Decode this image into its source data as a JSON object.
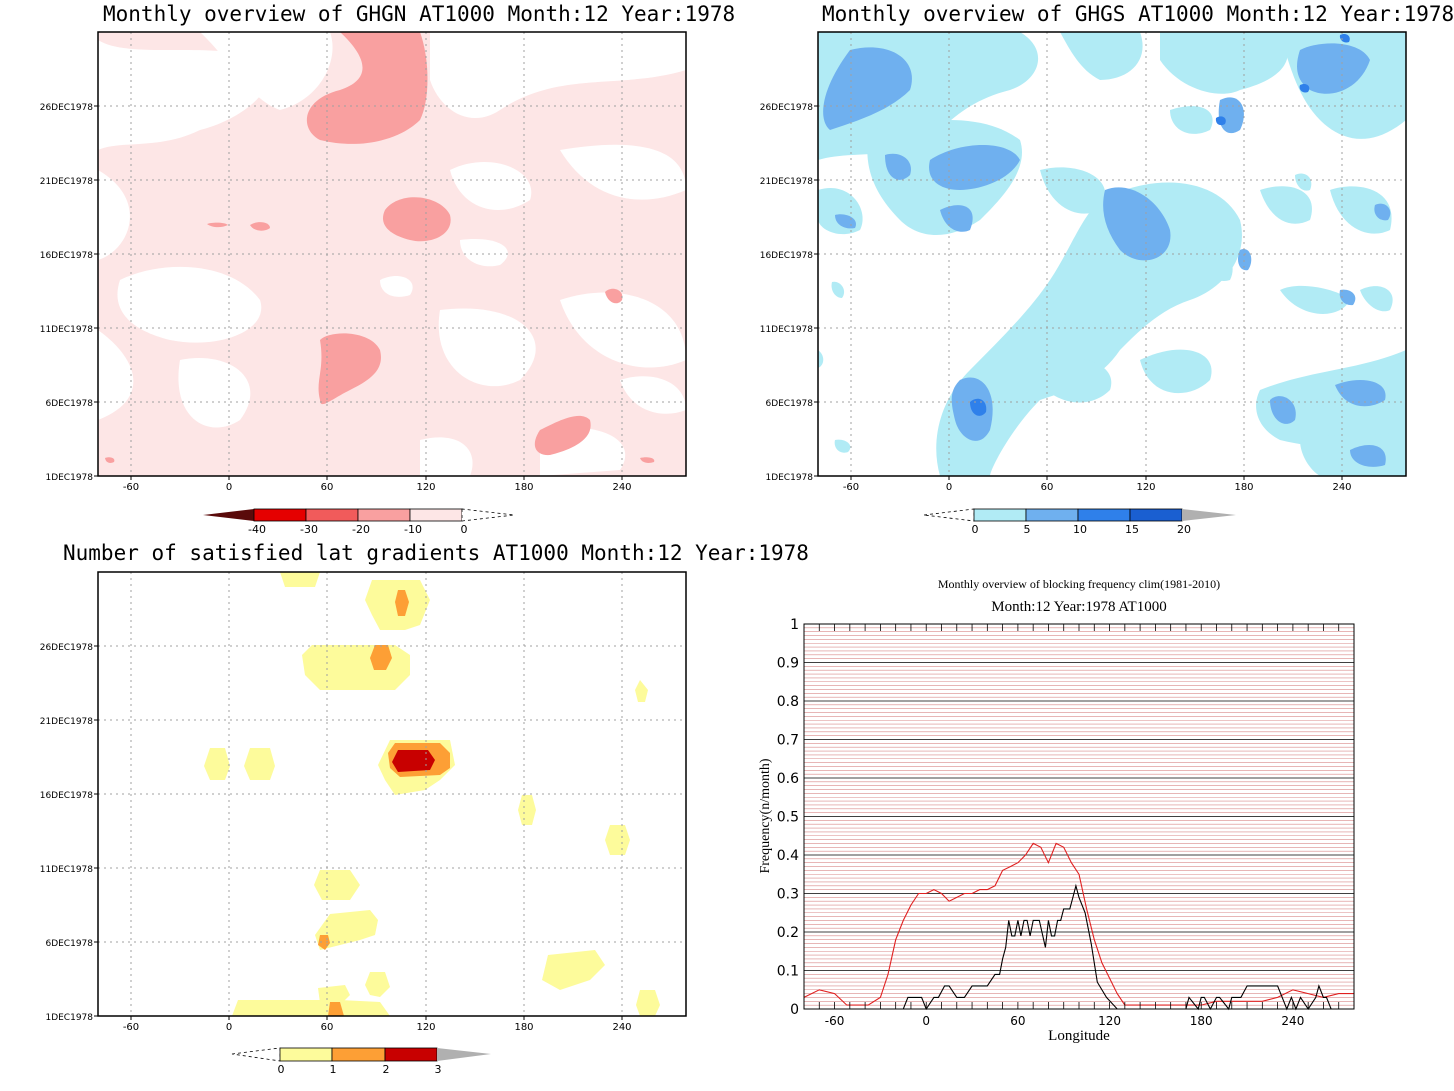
{
  "colors": {
    "red_scale": [
      "#5a0a0a",
      "#e50000",
      "#f15b5b",
      "#f9a0a0",
      "#fde6e6"
    ],
    "blue_scale": [
      "#b1ebf5",
      "#6fb0ef",
      "#2f80ea",
      "#1a5fd1"
    ],
    "yellow_scale": [
      "#fdfb9b",
      "#fd9f35",
      "#c80000"
    ],
    "gray": "#b0b0b0",
    "grid": "#a0a0a0",
    "clim_line": "#e02020",
    "year_line": "#000000"
  },
  "panels": [
    {
      "title": "Monthly overview of GHGN AT1000 Month:12 Year:1978",
      "y_ticks": [
        "1DEC1978",
        "6DEC1978",
        "11DEC1978",
        "16DEC1978",
        "21DEC1978",
        "26DEC1978"
      ],
      "x_ticks": [
        "-60",
        "0",
        "60",
        "120",
        "180",
        "240"
      ],
      "colorbar_labels": [
        "-40",
        "-30",
        "-20",
        "-10",
        "0"
      ]
    },
    {
      "title": "Monthly overview of GHGS AT1000 Month:12 Year:1978",
      "y_ticks": [
        "1DEC1978",
        "6DEC1978",
        "11DEC1978",
        "16DEC1978",
        "21DEC1978",
        "26DEC1978"
      ],
      "x_ticks": [
        "-60",
        "0",
        "60",
        "120",
        "180",
        "240"
      ],
      "colorbar_labels": [
        "0",
        "5",
        "10",
        "15",
        "20"
      ]
    },
    {
      "title": "Number of satisfied lat gradients AT1000 Month:12 Year:1978",
      "y_ticks": [
        "1DEC1978",
        "6DEC1978",
        "11DEC1978",
        "16DEC1978",
        "21DEC1978",
        "26DEC1978"
      ],
      "x_ticks": [
        "-60",
        "0",
        "60",
        "120",
        "180",
        "240"
      ],
      "colorbar_labels": [
        "0",
        "1",
        "2",
        "3"
      ]
    }
  ],
  "chart_data": [
    {
      "type": "heatmap",
      "title": "Monthly overview of GHGN AT1000 Month:12 Year:1978",
      "x_ticks": [
        -60,
        0,
        60,
        120,
        180,
        240
      ],
      "xlim": [
        -80,
        280
      ],
      "y_ticks": [
        "1DEC1978",
        "6DEC1978",
        "11DEC1978",
        "16DEC1978",
        "21DEC1978",
        "26DEC1978"
      ],
      "colorbar": [
        -40,
        -30,
        -20,
        -10,
        0
      ]
    },
    {
      "type": "heatmap",
      "title": "Monthly overview of GHGS AT1000 Month:12 Year:1978",
      "x_ticks": [
        -60,
        0,
        60,
        120,
        180,
        240
      ],
      "xlim": [
        -80,
        280
      ],
      "y_ticks": [
        "1DEC1978",
        "6DEC1978",
        "11DEC1978",
        "16DEC1978",
        "21DEC1978",
        "26DEC1978"
      ],
      "colorbar": [
        0,
        5,
        10,
        15,
        20
      ]
    },
    {
      "type": "heatmap",
      "title": "Number of satisfied lat gradients AT1000 Month:12 Year:1978",
      "x_ticks": [
        -60,
        0,
        60,
        120,
        180,
        240
      ],
      "xlim": [
        -80,
        280
      ],
      "y_ticks": [
        "1DEC1978",
        "6DEC1978",
        "11DEC1978",
        "16DEC1978",
        "21DEC1978",
        "26DEC1978"
      ],
      "colorbar": [
        0,
        1,
        2,
        3
      ]
    },
    {
      "type": "line",
      "title": "Monthly overview of blocking frequency clim(1981-2010)",
      "subtitle": "Month:12 Year:1978  AT1000",
      "xlabel": "Longitude",
      "ylabel": "Frequency(n/month)",
      "xlim": [
        -80,
        280
      ],
      "ylim": [
        0,
        1
      ],
      "x_ticks": [
        -60,
        0,
        60,
        120,
        180,
        240
      ],
      "y_ticks": [
        "0",
        "0.1",
        "0.2",
        "0.3",
        "0.4",
        "0.5",
        "0.6",
        "0.7",
        "0.8",
        "0.9",
        "1"
      ],
      "series": [
        {
          "color": "red",
          "x": [
            -80,
            -70,
            -60,
            -52,
            -45,
            -38,
            -30,
            -25,
            -20,
            -15,
            -10,
            -5,
            0,
            5,
            10,
            15,
            20,
            25,
            30,
            35,
            40,
            45,
            50,
            55,
            60,
            65,
            70,
            75,
            80,
            85,
            90,
            95,
            100,
            105,
            110,
            115,
            120,
            125,
            130,
            140,
            150,
            160,
            170,
            180,
            190,
            200,
            210,
            220,
            230,
            240,
            250,
            260,
            270,
            280
          ],
          "y": [
            0.03,
            0.05,
            0.04,
            0.01,
            0.01,
            0.01,
            0.03,
            0.09,
            0.18,
            0.23,
            0.27,
            0.3,
            0.3,
            0.31,
            0.3,
            0.28,
            0.29,
            0.3,
            0.3,
            0.31,
            0.31,
            0.32,
            0.36,
            0.37,
            0.38,
            0.4,
            0.43,
            0.42,
            0.38,
            0.43,
            0.42,
            0.38,
            0.35,
            0.26,
            0.18,
            0.12,
            0.08,
            0.04,
            0.01,
            0.01,
            0.01,
            0.01,
            0.01,
            0.01,
            0.02,
            0.02,
            0.02,
            0.02,
            0.03,
            0.05,
            0.04,
            0.03,
            0.04,
            0.04
          ]
        },
        {
          "color": "black",
          "x": [
            -80,
            -15,
            -12,
            -3,
            0,
            5,
            8,
            12,
            15,
            20,
            25,
            30,
            32,
            40,
            45,
            48,
            50,
            52,
            54,
            56,
            58,
            60,
            62,
            64,
            66,
            68,
            70,
            72,
            74,
            78,
            80,
            82,
            84,
            86,
            88,
            90,
            92,
            94,
            96,
            98,
            100,
            104,
            108,
            112,
            118,
            125,
            140,
            160,
            170,
            172,
            178,
            180,
            182,
            186,
            190,
            192,
            198,
            200,
            202,
            206,
            210,
            220,
            230,
            233,
            236,
            239,
            242,
            245,
            250,
            255,
            257,
            260,
            262,
            265,
            270
          ],
          "y": [
            0,
            0,
            0.03,
            0.03,
            0,
            0.03,
            0.03,
            0.06,
            0.06,
            0.03,
            0.03,
            0.06,
            0.06,
            0.06,
            0.09,
            0.09,
            0.13,
            0.16,
            0.23,
            0.19,
            0.19,
            0.23,
            0.19,
            0.23,
            0.23,
            0.19,
            0.23,
            0.23,
            0.23,
            0.16,
            0.23,
            0.19,
            0.19,
            0.23,
            0.23,
            0.26,
            0.26,
            0.26,
            0.29,
            0.32,
            0.29,
            0.25,
            0.17,
            0.07,
            0.03,
            0,
            0,
            0,
            0,
            0.03,
            0,
            0.03,
            0.03,
            0,
            0.03,
            0.03,
            0,
            0.03,
            0.03,
            0.03,
            0.06,
            0.06,
            0.06,
            0.03,
            0,
            0.03,
            0,
            0.03,
            0,
            0.03,
            0.06,
            0.03,
            0.03,
            0,
            0
          ]
        }
      ]
    }
  ]
}
